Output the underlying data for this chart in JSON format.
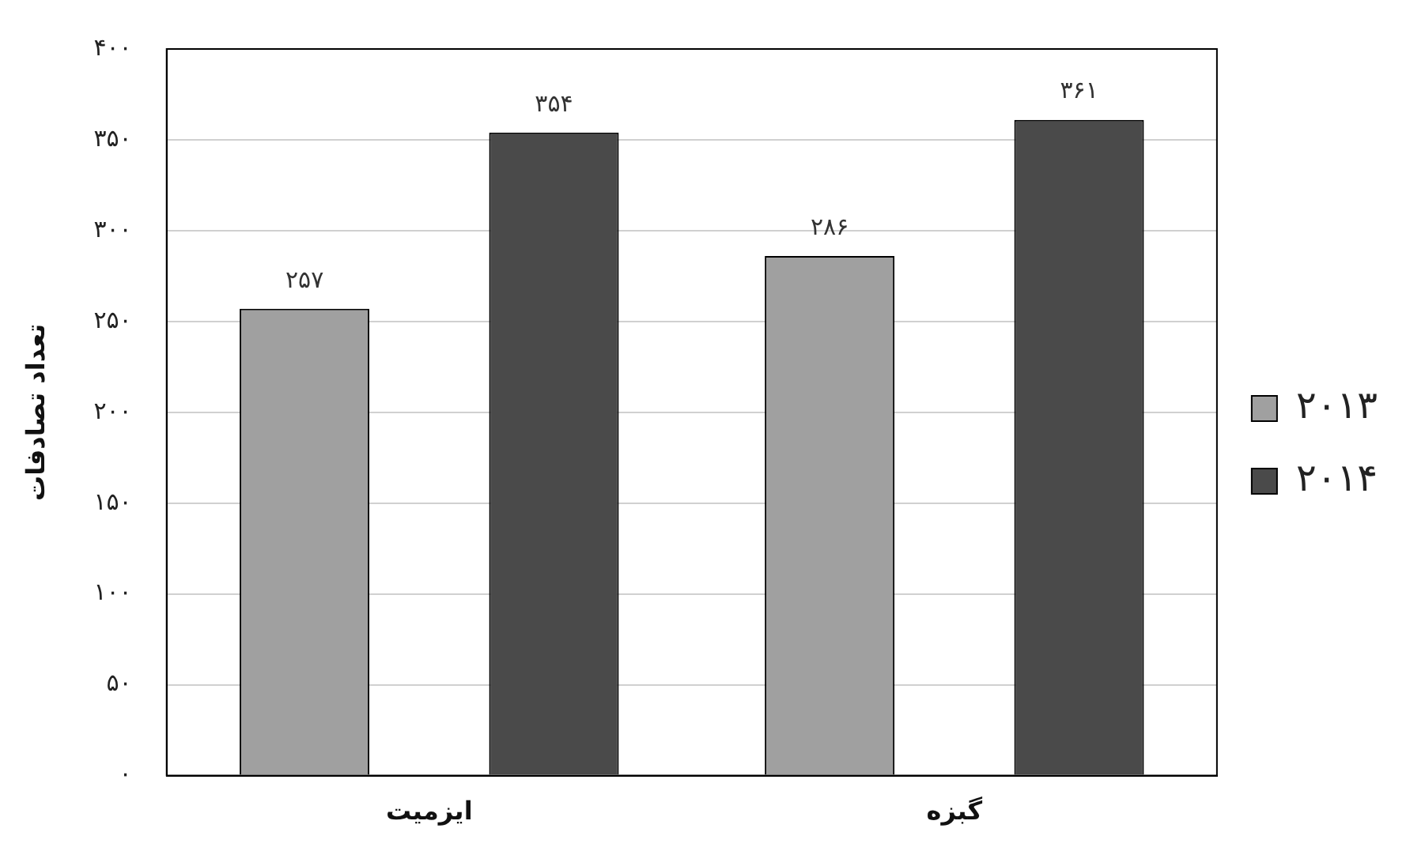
{
  "chart_data": {
    "type": "bar",
    "ylabel": "تعداد تصادفات",
    "categories": [
      "ایزمیت",
      "گبزه"
    ],
    "series": [
      {
        "name": "۲۰۱۳",
        "color": "#a0a0a0",
        "values": [
          257,
          286
        ],
        "value_labels": [
          "۲۵۷",
          "۲۸۶"
        ]
      },
      {
        "name": "۲۰۱۴",
        "color": "#4a4a4a",
        "values": [
          354,
          361
        ],
        "value_labels": [
          "۳۵۴",
          "۳۶۱"
        ]
      }
    ],
    "ylim": [
      0,
      400
    ],
    "yticks": [
      {
        "value": 0,
        "label": "۰"
      },
      {
        "value": 50,
        "label": "۵۰"
      },
      {
        "value": 100,
        "label": "۱۰۰"
      },
      {
        "value": 150,
        "label": "۱۵۰"
      },
      {
        "value": 200,
        "label": "۲۰۰"
      },
      {
        "value": 250,
        "label": "۲۵۰"
      },
      {
        "value": 300,
        "label": "۳۰۰"
      },
      {
        "value": 350,
        "label": "۳۵۰"
      },
      {
        "value": 400,
        "label": "۴۰۰"
      }
    ],
    "grid": "y",
    "legend": "right"
  }
}
